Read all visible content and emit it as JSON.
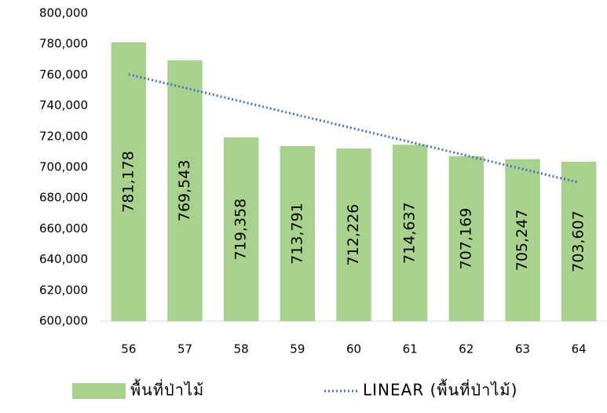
{
  "chart_data": {
    "type": "bar",
    "categories": [
      "56",
      "57",
      "58",
      "59",
      "60",
      "61",
      "62",
      "63",
      "64"
    ],
    "series": [
      {
        "name": "พื้นที่ป่าไม้",
        "color": "#a9d18e",
        "values": [
          781178,
          769543,
          719358,
          713791,
          712226,
          714637,
          707169,
          705247,
          703607
        ],
        "value_labels": [
          "781,178",
          "769,543",
          "719,358",
          "713,791",
          "712,226",
          "714,637",
          "707,169",
          "705,247",
          "703,607"
        ]
      }
    ],
    "trendline": {
      "name": "LINEAR (พื้นที่ป่าไม้)",
      "kind": "linear",
      "color": "#4472c4"
    },
    "ylim": [
      600000,
      800000
    ],
    "yticks": [
      {
        "value": 600000,
        "label": "600,000"
      },
      {
        "value": 620000,
        "label": "620,000"
      },
      {
        "value": 640000,
        "label": "640,000"
      },
      {
        "value": 660000,
        "label": "660,000"
      },
      {
        "value": 680000,
        "label": "680,000"
      },
      {
        "value": 700000,
        "label": "700,000"
      },
      {
        "value": 720000,
        "label": "720,000"
      },
      {
        "value": 740000,
        "label": "740,000"
      },
      {
        "value": 760000,
        "label": "760,000"
      },
      {
        "value": 780000,
        "label": "780,000"
      },
      {
        "value": 800000,
        "label": "800,000"
      }
    ],
    "grid": false,
    "legend": "bottom"
  }
}
